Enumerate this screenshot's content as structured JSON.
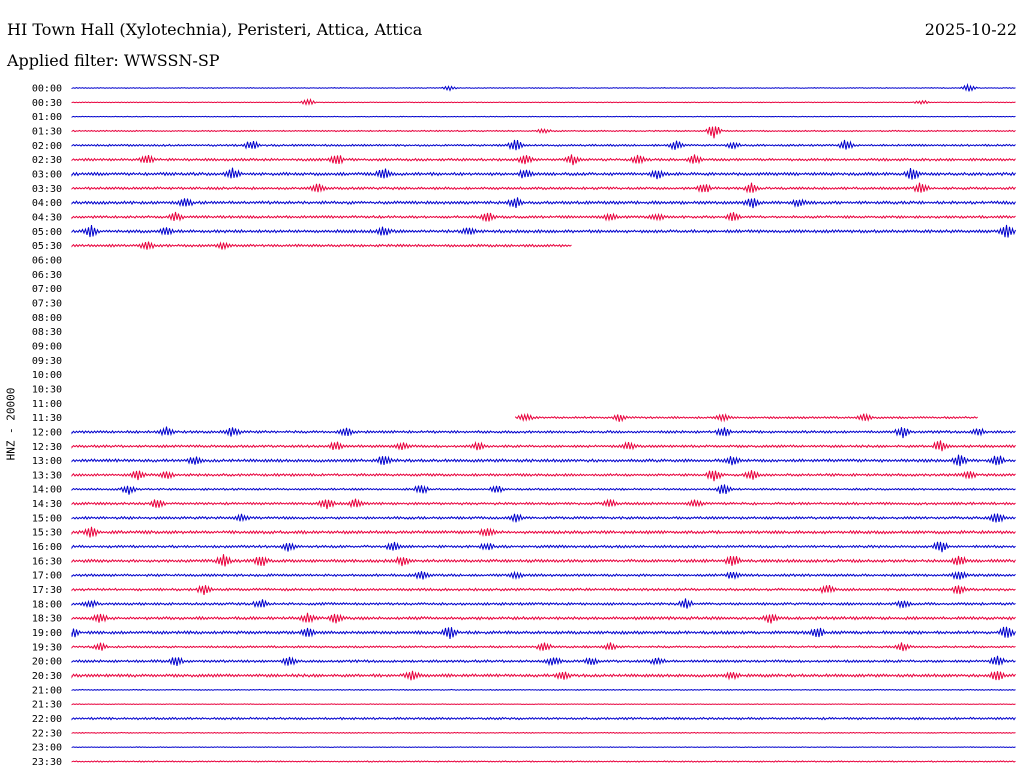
{
  "header": {
    "station": "HI Town Hall (Xylotechnia), Peristeri, Attica, Attica",
    "date": "2025-10-22",
    "filter": "Applied filter: WWSSN-SP"
  },
  "chart_data": {
    "type": "line",
    "title": "HI Town Hall (Xylotechnia), Peristeri, Attica, Attica",
    "ylabel": "HNZ - 20000",
    "colors": {
      "even_hour": "#0000cc",
      "half_hour": "#e8003c"
    },
    "rows": [
      {
        "label": "00:00",
        "start": 0,
        "end": 1,
        "noise": 0.3,
        "events": [
          [
            0.4,
            2
          ],
          [
            0.95,
            3
          ]
        ]
      },
      {
        "label": "00:30",
        "start": 0,
        "end": 1,
        "noise": 0.3,
        "events": [
          [
            0.25,
            3
          ],
          [
            0.9,
            2
          ]
        ]
      },
      {
        "label": "01:00",
        "start": 0,
        "end": 1,
        "noise": 0.3,
        "events": []
      },
      {
        "label": "01:30",
        "start": 0,
        "end": 1,
        "noise": 0.5,
        "events": [
          [
            0.68,
            6
          ],
          [
            0.5,
            2
          ]
        ]
      },
      {
        "label": "02:00",
        "start": 0,
        "end": 1,
        "noise": 0.8,
        "events": [
          [
            0.19,
            4
          ],
          [
            0.47,
            5
          ],
          [
            0.64,
            4
          ],
          [
            0.82,
            5
          ],
          [
            0.7,
            3
          ]
        ]
      },
      {
        "label": "02:30",
        "start": 0,
        "end": 1,
        "noise": 1.0,
        "events": [
          [
            0.08,
            4
          ],
          [
            0.28,
            5
          ],
          [
            0.48,
            4
          ],
          [
            0.53,
            4
          ],
          [
            0.6,
            4
          ],
          [
            0.66,
            4
          ]
        ]
      },
      {
        "label": "03:00",
        "start": 0,
        "end": 1,
        "noise": 1.2,
        "events": [
          [
            0.17,
            5
          ],
          [
            0.33,
            5
          ],
          [
            0.48,
            4
          ],
          [
            0.62,
            4
          ],
          [
            0.89,
            5
          ]
        ]
      },
      {
        "label": "03:30",
        "start": 0,
        "end": 1,
        "noise": 1.0,
        "events": [
          [
            0.26,
            4
          ],
          [
            0.67,
            4
          ],
          [
            0.72,
            4
          ],
          [
            0.9,
            5
          ]
        ]
      },
      {
        "label": "04:00",
        "start": 0,
        "end": 1,
        "noise": 1.2,
        "events": [
          [
            0.12,
            4
          ],
          [
            0.47,
            5
          ],
          [
            0.72,
            4
          ],
          [
            0.77,
            3
          ]
        ]
      },
      {
        "label": "04:30",
        "start": 0,
        "end": 1,
        "noise": 1.0,
        "events": [
          [
            0.11,
            4
          ],
          [
            0.44,
            4
          ],
          [
            0.57,
            3
          ],
          [
            0.62,
            3
          ],
          [
            0.7,
            4
          ]
        ]
      },
      {
        "label": "05:00",
        "start": 0,
        "end": 1,
        "noise": 1.2,
        "events": [
          [
            0.02,
            5
          ],
          [
            0.1,
            4
          ],
          [
            0.33,
            4
          ],
          [
            0.42,
            3
          ],
          [
            0.99,
            6
          ]
        ]
      },
      {
        "label": "05:30",
        "start": 0,
        "end": 0.53,
        "noise": 1.0,
        "events": [
          [
            0.08,
            3
          ],
          [
            0.16,
            3
          ]
        ]
      },
      {
        "label": "06:00",
        "start": 0,
        "end": 0,
        "noise": 0,
        "events": []
      },
      {
        "label": "06:30",
        "start": 0,
        "end": 0,
        "noise": 0,
        "events": []
      },
      {
        "label": "07:00",
        "start": 0,
        "end": 0,
        "noise": 0,
        "events": []
      },
      {
        "label": "07:30",
        "start": 0,
        "end": 0,
        "noise": 0,
        "events": []
      },
      {
        "label": "08:00",
        "start": 0,
        "end": 0,
        "noise": 0,
        "events": []
      },
      {
        "label": "08:30",
        "start": 0,
        "end": 0,
        "noise": 0,
        "events": []
      },
      {
        "label": "09:00",
        "start": 0,
        "end": 0,
        "noise": 0,
        "events": []
      },
      {
        "label": "09:30",
        "start": 0,
        "end": 0,
        "noise": 0,
        "events": []
      },
      {
        "label": "10:00",
        "start": 0,
        "end": 0,
        "noise": 0,
        "events": []
      },
      {
        "label": "10:30",
        "start": 0,
        "end": 0,
        "noise": 0,
        "events": []
      },
      {
        "label": "11:00",
        "start": 0,
        "end": 0,
        "noise": 0,
        "events": []
      },
      {
        "label": "11:30",
        "start": 0.47,
        "end": 0.96,
        "noise": 0.8,
        "events": [
          [
            0.48,
            3
          ],
          [
            0.58,
            3
          ],
          [
            0.69,
            3
          ],
          [
            0.84,
            3
          ]
        ]
      },
      {
        "label": "12:00",
        "start": 0,
        "end": 1,
        "noise": 1.0,
        "events": [
          [
            0.1,
            4
          ],
          [
            0.17,
            4
          ],
          [
            0.29,
            4
          ],
          [
            0.69,
            4
          ],
          [
            0.88,
            5
          ],
          [
            0.96,
            3
          ]
        ]
      },
      {
        "label": "12:30",
        "start": 0,
        "end": 1,
        "noise": 1.0,
        "events": [
          [
            0.28,
            4
          ],
          [
            0.35,
            3
          ],
          [
            0.43,
            3
          ],
          [
            0.59,
            3
          ],
          [
            0.92,
            5
          ]
        ]
      },
      {
        "label": "13:00",
        "start": 0,
        "end": 1,
        "noise": 1.2,
        "events": [
          [
            0.13,
            4
          ],
          [
            0.33,
            4
          ],
          [
            0.7,
            4
          ],
          [
            0.94,
            5
          ],
          [
            0.98,
            5
          ]
        ]
      },
      {
        "label": "13:30",
        "start": 0,
        "end": 1,
        "noise": 1.0,
        "events": [
          [
            0.07,
            4
          ],
          [
            0.1,
            3
          ],
          [
            0.68,
            6
          ],
          [
            0.72,
            4
          ],
          [
            0.95,
            4
          ]
        ]
      },
      {
        "label": "14:00",
        "start": 0,
        "end": 1,
        "noise": 0.8,
        "events": [
          [
            0.06,
            4
          ],
          [
            0.37,
            4
          ],
          [
            0.45,
            3
          ],
          [
            0.69,
            5
          ]
        ]
      },
      {
        "label": "14:30",
        "start": 0,
        "end": 1,
        "noise": 1.0,
        "events": [
          [
            0.09,
            4
          ],
          [
            0.27,
            5
          ],
          [
            0.3,
            4
          ],
          [
            0.57,
            3
          ],
          [
            0.66,
            3
          ]
        ]
      },
      {
        "label": "15:00",
        "start": 0,
        "end": 1,
        "noise": 1.0,
        "events": [
          [
            0.18,
            3
          ],
          [
            0.47,
            3
          ],
          [
            0.98,
            5
          ]
        ]
      },
      {
        "label": "15:30",
        "start": 0,
        "end": 1,
        "noise": 1.2,
        "events": [
          [
            0.02,
            5
          ],
          [
            0.44,
            4
          ]
        ]
      },
      {
        "label": "16:00",
        "start": 0,
        "end": 1,
        "noise": 1.0,
        "events": [
          [
            0.23,
            4
          ],
          [
            0.34,
            4
          ],
          [
            0.44,
            3
          ],
          [
            0.92,
            5
          ]
        ]
      },
      {
        "label": "16:30",
        "start": 0,
        "end": 1,
        "noise": 1.2,
        "events": [
          [
            0.16,
            5
          ],
          [
            0.2,
            5
          ],
          [
            0.35,
            4
          ],
          [
            0.7,
            5
          ],
          [
            0.94,
            4
          ]
        ]
      },
      {
        "label": "17:00",
        "start": 0,
        "end": 1,
        "noise": 1.0,
        "events": [
          [
            0.37,
            4
          ],
          [
            0.47,
            3
          ],
          [
            0.7,
            3
          ],
          [
            0.94,
            4
          ]
        ]
      },
      {
        "label": "17:30",
        "start": 0,
        "end": 1,
        "noise": 1.0,
        "events": [
          [
            0.14,
            4
          ],
          [
            0.8,
            4
          ],
          [
            0.94,
            4
          ]
        ]
      },
      {
        "label": "18:00",
        "start": 0,
        "end": 1,
        "noise": 1.0,
        "events": [
          [
            0.02,
            3
          ],
          [
            0.2,
            4
          ],
          [
            0.65,
            4
          ],
          [
            0.88,
            3
          ]
        ]
      },
      {
        "label": "18:30",
        "start": 0,
        "end": 1,
        "noise": 1.2,
        "events": [
          [
            0.03,
            4
          ],
          [
            0.25,
            4
          ],
          [
            0.28,
            4
          ],
          [
            0.74,
            4
          ]
        ]
      },
      {
        "label": "19:00",
        "start": 0,
        "end": 1,
        "noise": 1.2,
        "events": [
          [
            0.0,
            5
          ],
          [
            0.25,
            4
          ],
          [
            0.4,
            5
          ],
          [
            0.79,
            4
          ],
          [
            0.99,
            6
          ]
        ]
      },
      {
        "label": "19:30",
        "start": 0,
        "end": 1,
        "noise": 0.8,
        "events": [
          [
            0.03,
            3
          ],
          [
            0.5,
            4
          ],
          [
            0.57,
            3
          ],
          [
            0.88,
            4
          ]
        ]
      },
      {
        "label": "20:00",
        "start": 0,
        "end": 1,
        "noise": 1.0,
        "events": [
          [
            0.11,
            4
          ],
          [
            0.23,
            4
          ],
          [
            0.51,
            4
          ],
          [
            0.55,
            3
          ],
          [
            0.62,
            3
          ],
          [
            0.98,
            4
          ]
        ]
      },
      {
        "label": "20:30",
        "start": 0,
        "end": 1,
        "noise": 1.2,
        "events": [
          [
            0.36,
            4
          ],
          [
            0.52,
            4
          ],
          [
            0.7,
            3
          ],
          [
            0.98,
            5
          ]
        ]
      },
      {
        "label": "21:00",
        "start": 0,
        "end": 1,
        "noise": 0.4,
        "events": []
      },
      {
        "label": "21:30",
        "start": 0,
        "end": 1,
        "noise": 0.3,
        "events": []
      },
      {
        "label": "22:00",
        "start": 0,
        "end": 1,
        "noise": 0.9,
        "events": []
      },
      {
        "label": "22:30",
        "start": 0,
        "end": 1,
        "noise": 0.4,
        "events": []
      },
      {
        "label": "23:00",
        "start": 0,
        "end": 1,
        "noise": 0.3,
        "events": []
      },
      {
        "label": "23:30",
        "start": 0,
        "end": 1,
        "noise": 0.5,
        "events": []
      }
    ]
  }
}
